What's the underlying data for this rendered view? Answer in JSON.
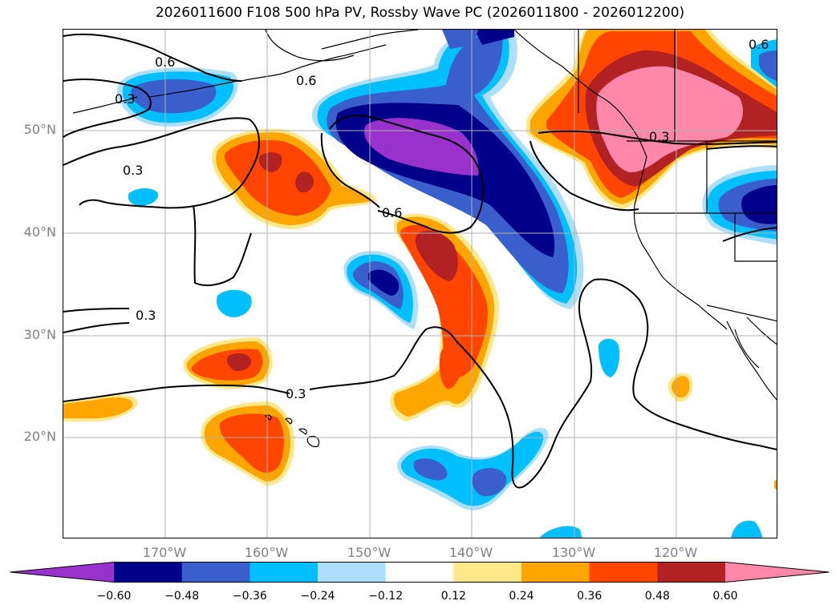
{
  "title": "2026011600 F108 500 hPa PV, Rossby Wave PC (2026011800 - 2026012200)",
  "latitude_labels": [
    "50°N",
    "40°N",
    "30°N",
    "20°N"
  ],
  "longitude_labels": [
    "170°W",
    "160°W",
    "150°W",
    "140°W",
    "130°W",
    "120°W"
  ],
  "contour_labels": [
    "0.6",
    "0.6",
    "0.3",
    "0.3",
    "0.6",
    "0.3",
    "0.3",
    "0.3",
    "0.6"
  ],
  "colorbar": {
    "ticks": [
      "−0.60",
      "−0.48",
      "−0.36",
      "−0.24",
      "−0.12",
      "0.12",
      "0.24",
      "0.36",
      "0.48",
      "0.60"
    ],
    "colors": [
      "#9932CC",
      "#00008B",
      "#3A5FCD",
      "#00BFFF",
      "#ADDFFA",
      "#FFFFFF",
      "#FFE88A",
      "#FFA500",
      "#FF4500",
      "#B22222",
      "#FF88AA"
    ]
  },
  "colors": {
    "neg_extreme": "#9932CC",
    "neg_dark": "#00008B",
    "neg_mid": "#3A5FCD",
    "neg_light": "#00BFFF",
    "neg_pale": "#ADDFFA",
    "pos_pale": "#FFE88A",
    "pos_light": "#FFA500",
    "pos_mid": "#FF4500",
    "pos_dark": "#B22222",
    "pos_extreme": "#FF88AA"
  }
}
